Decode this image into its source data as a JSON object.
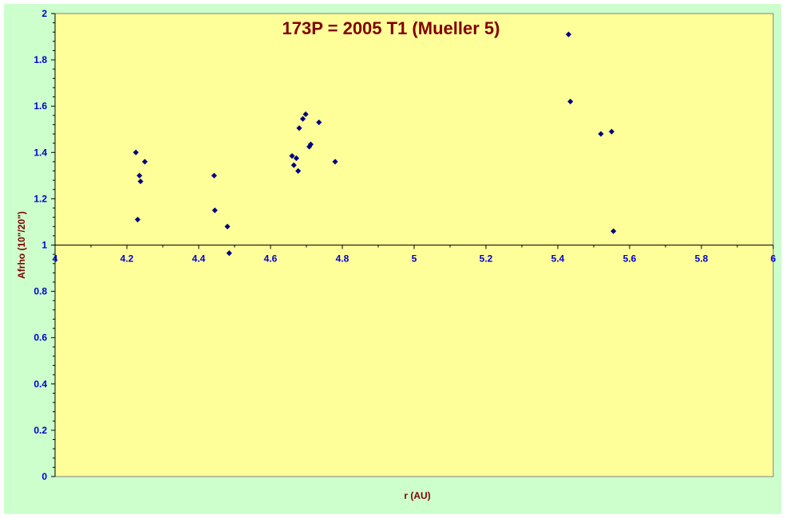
{
  "chart_data": {
    "type": "scatter",
    "title": "173P = 2005 T1 (Mueller 5)",
    "xlabel": "r (AU)",
    "ylabel": "Afrho (10\"/20\")",
    "xlim": [
      4,
      6
    ],
    "ylim": [
      0,
      2
    ],
    "x_ticks": [
      "4",
      "4.2",
      "4.4",
      "4.6",
      "4.8",
      "5",
      "5.2",
      "5.4",
      "5.6",
      "5.8",
      "6"
    ],
    "y_ticks": [
      "0",
      "0.2",
      "0.4",
      "0.6",
      "0.8",
      "1",
      "1.2",
      "1.4",
      "1.6",
      "1.8",
      "2"
    ],
    "x_axis_crosses_at_y": 1,
    "grid": false,
    "legend": "none",
    "colors": {
      "frame_bg": "#ccffcc",
      "plot_bg": "#ffff99",
      "marker": "#000080",
      "tick_labels": "#0000cc",
      "titles": "#800000"
    },
    "series": [
      {
        "points": [
          [
            4.225,
            1.4
          ],
          [
            4.23,
            1.11
          ],
          [
            4.235,
            1.3
          ],
          [
            4.238,
            1.275
          ],
          [
            4.25,
            1.36
          ],
          [
            4.443,
            1.3
          ],
          [
            4.445,
            1.15
          ],
          [
            4.48,
            1.08
          ],
          [
            4.485,
            0.965
          ],
          [
            4.66,
            1.385
          ],
          [
            4.665,
            1.345
          ],
          [
            4.672,
            1.375
          ],
          [
            4.677,
            1.32
          ],
          [
            4.68,
            1.505
          ],
          [
            4.69,
            1.545
          ],
          [
            4.698,
            1.565
          ],
          [
            4.708,
            1.425
          ],
          [
            4.712,
            1.435
          ],
          [
            4.735,
            1.53
          ],
          [
            4.78,
            1.36
          ],
          [
            5.43,
            1.91
          ],
          [
            5.435,
            1.62
          ],
          [
            5.52,
            1.48
          ],
          [
            5.55,
            1.49
          ],
          [
            5.555,
            1.06
          ]
        ]
      }
    ]
  }
}
